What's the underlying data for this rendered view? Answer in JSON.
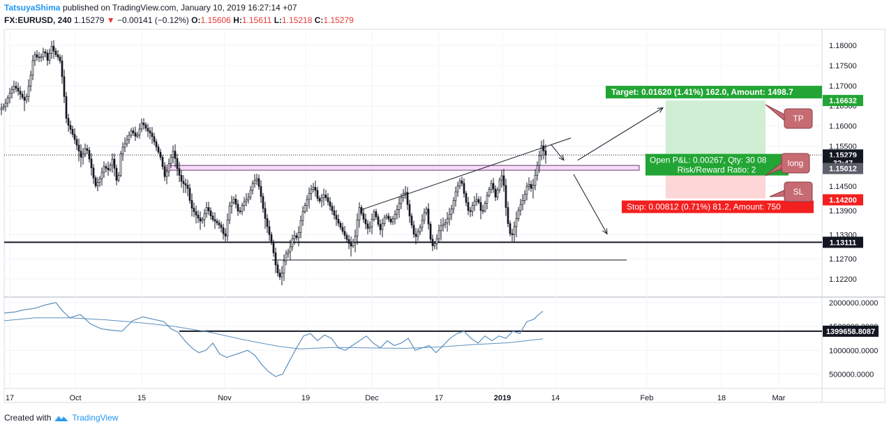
{
  "header": {
    "author": "TatsuyaShima",
    "published_text": "published on TradingView.com, January 10, 2019 16:27:14 +07",
    "symbol": "FX:EURUSD, 240",
    "last": "1.15279",
    "arrow": "▼",
    "change": "−0.00141 (−0.12%)",
    "o_label": "O:",
    "o_value": "1.15606",
    "h_label": "H:",
    "h_value": "1.15611",
    "l_label": "L:",
    "l_value": "1.15218",
    "c_label": "C:",
    "c_value": "1.15279"
  },
  "footer": {
    "created_with": "Created with",
    "brand": "TradingView",
    "icon": "tradingview-logo-icon"
  },
  "colors": {
    "up": "#131722",
    "grid": "#f0f3fa",
    "tp_zone": "#cfeed3",
    "sl_zone": "#fdd6d8",
    "target": "#22a534",
    "stop": "#f31f1f",
    "zone": "#f6dcf8",
    "callout": "#c76b73",
    "indicator": "#5b8fbd"
  },
  "chart_data": [
    {
      "type": "candlestick",
      "symbol": "FX:EURUSD",
      "interval": "240",
      "ylim": [
        1.1175,
        1.184
      ],
      "y_ticks": [
        "1.18000",
        "1.17500",
        "1.17000",
        "1.16500",
        "1.16000",
        "1.15500",
        "1.14500",
        "1.13900",
        "1.13300",
        "1.12700",
        "1.12200"
      ],
      "y_tick_values": [
        1.18,
        1.175,
        1.17,
        1.165,
        1.16,
        1.155,
        1.145,
        1.139,
        1.133,
        1.127,
        1.122
      ],
      "x_ticks": [
        "17",
        "Oct",
        "15",
        "Nov",
        "19",
        "Dec",
        "17",
        "2019",
        "14",
        "Feb",
        "18",
        "Mar"
      ],
      "x_tick_bold": "2019",
      "price_path": [
        [
          0,
          1.164
        ],
        [
          8,
          1.165
        ],
        [
          15,
          1.168
        ],
        [
          22,
          1.17
        ],
        [
          30,
          1.168
        ],
        [
          38,
          1.166
        ],
        [
          45,
          1.172
        ],
        [
          50,
          1.178
        ],
        [
          55,
          1.177
        ],
        [
          60,
          1.177
        ],
        [
          65,
          1.179
        ],
        [
          70,
          1.176
        ],
        [
          75,
          1.18
        ],
        [
          80,
          1.178
        ],
        [
          85,
          1.177
        ],
        [
          88,
          1.176
        ],
        [
          92,
          1.17
        ],
        [
          97,
          1.161
        ],
        [
          103,
          1.159
        ],
        [
          110,
          1.156
        ],
        [
          118,
          1.152
        ],
        [
          125,
          1.155
        ],
        [
          132,
          1.15
        ],
        [
          138,
          1.145
        ],
        [
          145,
          1.147
        ],
        [
          150,
          1.15
        ],
        [
          157,
          1.149
        ],
        [
          163,
          1.152
        ],
        [
          170,
          1.145
        ],
        [
          175,
          1.154
        ],
        [
          182,
          1.156
        ],
        [
          190,
          1.159
        ],
        [
          197,
          1.157
        ],
        [
          205,
          1.161
        ],
        [
          212,
          1.159
        ],
        [
          218,
          1.158
        ],
        [
          225,
          1.155
        ],
        [
          232,
          1.152
        ],
        [
          238,
          1.147
        ],
        [
          244,
          1.151
        ],
        [
          250,
          1.154
        ],
        [
          256,
          1.149
        ],
        [
          262,
          1.146
        ],
        [
          270,
          1.145
        ],
        [
          275,
          1.14
        ],
        [
          282,
          1.138
        ],
        [
          290,
          1.136
        ],
        [
          298,
          1.14
        ],
        [
          305,
          1.137
        ],
        [
          312,
          1.136
        ],
        [
          318,
          1.135
        ],
        [
          324,
          1.132
        ],
        [
          330,
          1.14
        ],
        [
          337,
          1.142
        ],
        [
          344,
          1.138
        ],
        [
          350,
          1.141
        ],
        [
          357,
          1.142
        ],
        [
          364,
          1.146
        ],
        [
          370,
          1.147
        ],
        [
          375,
          1.143
        ],
        [
          380,
          1.138
        ],
        [
          386,
          1.134
        ],
        [
          392,
          1.13
        ],
        [
          398,
          1.124
        ],
        [
          404,
          1.122
        ],
        [
          410,
          1.128
        ],
        [
          416,
          1.129
        ],
        [
          422,
          1.133
        ],
        [
          428,
          1.132
        ],
        [
          434,
          1.138
        ],
        [
          440,
          1.141
        ],
        [
          446,
          1.144
        ],
        [
          452,
          1.145
        ],
        [
          458,
          1.141
        ],
        [
          466,
          1.143
        ],
        [
          472,
          1.141
        ],
        [
          480,
          1.138
        ],
        [
          486,
          1.136
        ],
        [
          492,
          1.134
        ],
        [
          498,
          1.132
        ],
        [
          504,
          1.13
        ],
        [
          510,
          1.132
        ],
        [
          516,
          1.14
        ],
        [
          522,
          1.137
        ],
        [
          530,
          1.134
        ],
        [
          538,
          1.139
        ],
        [
          546,
          1.134
        ],
        [
          554,
          1.138
        ],
        [
          562,
          1.136
        ],
        [
          570,
          1.139
        ],
        [
          576,
          1.142
        ],
        [
          582,
          1.144
        ],
        [
          588,
          1.138
        ],
        [
          596,
          1.132
        ],
        [
          604,
          1.135
        ],
        [
          612,
          1.14
        ],
        [
          620,
          1.13
        ],
        [
          626,
          1.131
        ],
        [
          632,
          1.135
        ],
        [
          640,
          1.136
        ],
        [
          648,
          1.139
        ],
        [
          655,
          1.144
        ],
        [
          662,
          1.147
        ],
        [
          668,
          1.142
        ],
        [
          674,
          1.138
        ],
        [
          680,
          1.141
        ],
        [
          686,
          1.142
        ],
        [
          692,
          1.138
        ],
        [
          700,
          1.143
        ],
        [
          706,
          1.146
        ],
        [
          712,
          1.142
        ],
        [
          718,
          1.147
        ],
        [
          722,
          1.148
        ],
        [
          728,
          1.137
        ],
        [
          734,
          1.132
        ],
        [
          740,
          1.136
        ],
        [
          746,
          1.14
        ],
        [
          752,
          1.142
        ],
        [
          758,
          1.146
        ],
        [
          764,
          1.144
        ],
        [
          770,
          1.149
        ],
        [
          775,
          1.153
        ],
        [
          778,
          1.1555
        ],
        [
          782,
          1.1528
        ]
      ],
      "current_price": {
        "label": "1.15279",
        "value": 1.15279,
        "timer": "32:47",
        "timer_value": 1.1519
      },
      "levels": [
        {
          "name": "support",
          "label": "1.13111",
          "value": 1.13111
        },
        {
          "name": "entry",
          "label": "1.15012",
          "value": 1.15012
        },
        {
          "name": "take-profit",
          "label": "1.16632",
          "value": 1.16632
        },
        {
          "name": "stop-loss",
          "label": "1.14200",
          "value": 1.142
        },
        {
          "name": "range-low",
          "value": 1.1267,
          "x_from": 390,
          "x_to": 898
        }
      ],
      "zone": {
        "top": 1.1502,
        "bottom": 1.149,
        "x_from": 236,
        "x_to": 916
      },
      "trendline": {
        "from": [
          518,
          1.1392
        ],
        "to": [
          818,
          1.157
        ]
      },
      "arrows": [
        {
          "from": [
            790,
            1.1553
          ],
          "to": [
            808,
            1.1515
          ]
        },
        {
          "from": [
            828,
            1.1515
          ],
          "to": [
            950,
            1.1645
          ]
        },
        {
          "from": [
            822,
            1.148
          ],
          "to": [
            870,
            1.1332
          ]
        }
      ],
      "position": {
        "side": "long",
        "x_from": 954,
        "x_to": 1097,
        "target_text": "Target: 0.01620 (1.41%) 162.0, Amount: 1498.7",
        "pnl_text": "Open P&L: 0.00267, Qty: 30 08",
        "rr_text": "Risk/Reward Ratio: 2",
        "stop_text": "Stop: 0.00812 (0.71%) 81.2, Amount: 750"
      },
      "callouts": [
        "TP",
        "long",
        "SL"
      ]
    },
    {
      "type": "line",
      "role": "indicator",
      "ylim": [
        200000,
        2100000
      ],
      "y_ticks": [
        "2000000.0000",
        "1500000.0000",
        "1000000.0000",
        "500000.0000"
      ],
      "y_tick_values": [
        2000000,
        1500000,
        1000000,
        500000
      ],
      "level": {
        "label": "1399658.8087",
        "value": 1399658.8087
      },
      "series": [
        {
          "values": [
            [
              6,
              1780000.0
            ],
            [
              20,
              1800000.0
            ],
            [
              35,
              1850000.0
            ],
            [
              50,
              1880000.0
            ],
            [
              65,
              1950000.0
            ],
            [
              80,
              2000000.0
            ],
            [
              90,
              1820000.0
            ],
            [
              100,
              1680000.0
            ],
            [
              115,
              1750000.0
            ],
            [
              130,
              1550000.0
            ],
            [
              145,
              1450000.0
            ],
            [
              160,
              1420000.0
            ],
            [
              175,
              1400000.0
            ],
            [
              190,
              1620000.0
            ],
            [
              205,
              1700000.0
            ],
            [
              220,
              1650000.0
            ],
            [
              235,
              1600000.0
            ],
            [
              245,
              1450000.0
            ],
            [
              255,
              1380000.0
            ],
            [
              265,
              1200000.0
            ],
            [
              275,
              1050000.0
            ],
            [
              285,
              950000.0
            ],
            [
              295,
              1000000.0
            ],
            [
              305,
              1150000.0
            ],
            [
              315,
              920000.0
            ],
            [
              325,
              850000.0
            ],
            [
              335,
              900000.0
            ],
            [
              345,
              950000.0
            ],
            [
              355,
              1000000.0
            ],
            [
              365,
              900000.0
            ],
            [
              375,
              700000.0
            ],
            [
              385,
              550000.0
            ],
            [
              395,
              450000.0
            ],
            [
              405,
              500000.0
            ],
            [
              415,
              780000.0
            ],
            [
              425,
              1050000.0
            ],
            [
              435,
              1300000.0
            ],
            [
              445,
              1350000.0
            ],
            [
              455,
              1200000.0
            ],
            [
              465,
              1320000.0
            ],
            [
              475,
              1250000.0
            ],
            [
              485,
              1050000.0
            ],
            [
              495,
              1000000.0
            ],
            [
              505,
              1100000.0
            ],
            [
              515,
              1200000.0
            ],
            [
              525,
              1300000.0
            ],
            [
              535,
              1150000.0
            ],
            [
              545,
              1050000.0
            ],
            [
              555,
              1200000.0
            ],
            [
              565,
              1100000.0
            ],
            [
              575,
              1150000.0
            ],
            [
              585,
              1250000.0
            ],
            [
              595,
              1000000.0
            ],
            [
              605,
              1050000.0
            ],
            [
              615,
              1100000.0
            ],
            [
              625,
              950000.0
            ],
            [
              635,
              1100000.0
            ],
            [
              645,
              1250000.0
            ],
            [
              655,
              1350000.0
            ],
            [
              665,
              1400000.0
            ],
            [
              675,
              1250000.0
            ],
            [
              685,
              1150000.0
            ],
            [
              695,
              1300000.0
            ],
            [
              705,
              1200000.0
            ],
            [
              715,
              1300000.0
            ],
            [
              725,
              1250000.0
            ],
            [
              735,
              1400000.0
            ],
            [
              745,
              1350000.0
            ],
            [
              755,
              1600000.0
            ],
            [
              765,
              1650000.0
            ],
            [
              772,
              1750000.0
            ],
            [
              778,
              1820000.0
            ]
          ]
        },
        {
          "values": [
            [
              6,
              1620000.0
            ],
            [
              50,
              1680000.0
            ],
            [
              100,
              1680000.0
            ],
            [
              150,
              1640000.0
            ],
            [
              200,
              1580000.0
            ],
            [
              250,
              1500000.0
            ],
            [
              300,
              1380000.0
            ],
            [
              350,
              1220000.0
            ],
            [
              400,
              1080000.0
            ],
            [
              430,
              1030000.0
            ],
            [
              480,
              1060000.0
            ],
            [
              530,
              1050000.0
            ],
            [
              580,
              1040000.0
            ],
            [
              630,
              1070000.0
            ],
            [
              680,
              1120000.0
            ],
            [
              730,
              1160000.0
            ],
            [
              778,
              1240000.0
            ]
          ]
        }
      ]
    }
  ]
}
